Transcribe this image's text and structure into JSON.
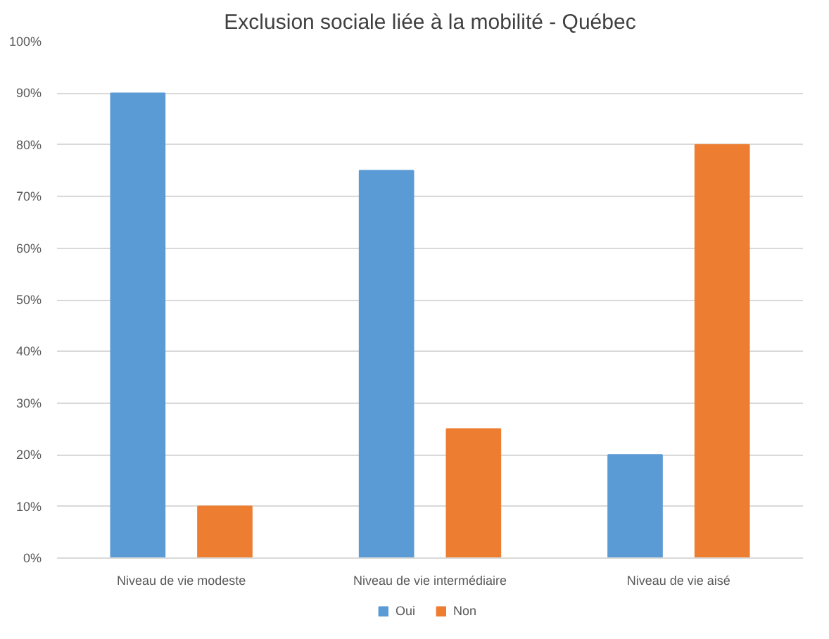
{
  "chart_data": {
    "type": "bar",
    "title": "Exclusion sociale liée à la mobilité - Québec",
    "categories": [
      "Niveau de vie modeste",
      "Niveau de vie intermédiaire",
      "Niveau de vie aisé"
    ],
    "series": [
      {
        "name": "Oui",
        "color": "#5b9bd5",
        "values": [
          90,
          75,
          20
        ]
      },
      {
        "name": "Non",
        "color": "#ed7d31",
        "values": [
          10,
          25,
          80
        ]
      }
    ],
    "ylim": [
      0,
      100
    ],
    "yticks": [
      {
        "value": 0,
        "label": "0%"
      },
      {
        "value": 10,
        "label": "10%"
      },
      {
        "value": 20,
        "label": "20%"
      },
      {
        "value": 30,
        "label": "30%"
      },
      {
        "value": 40,
        "label": "40%"
      },
      {
        "value": 50,
        "label": "50%"
      },
      {
        "value": 60,
        "label": "60%"
      },
      {
        "value": 70,
        "label": "70%"
      },
      {
        "value": 80,
        "label": "80%"
      },
      {
        "value": 90,
        "label": "90%"
      },
      {
        "value": 100,
        "label": "100%"
      }
    ],
    "grid": "y",
    "legend": "bottom"
  }
}
